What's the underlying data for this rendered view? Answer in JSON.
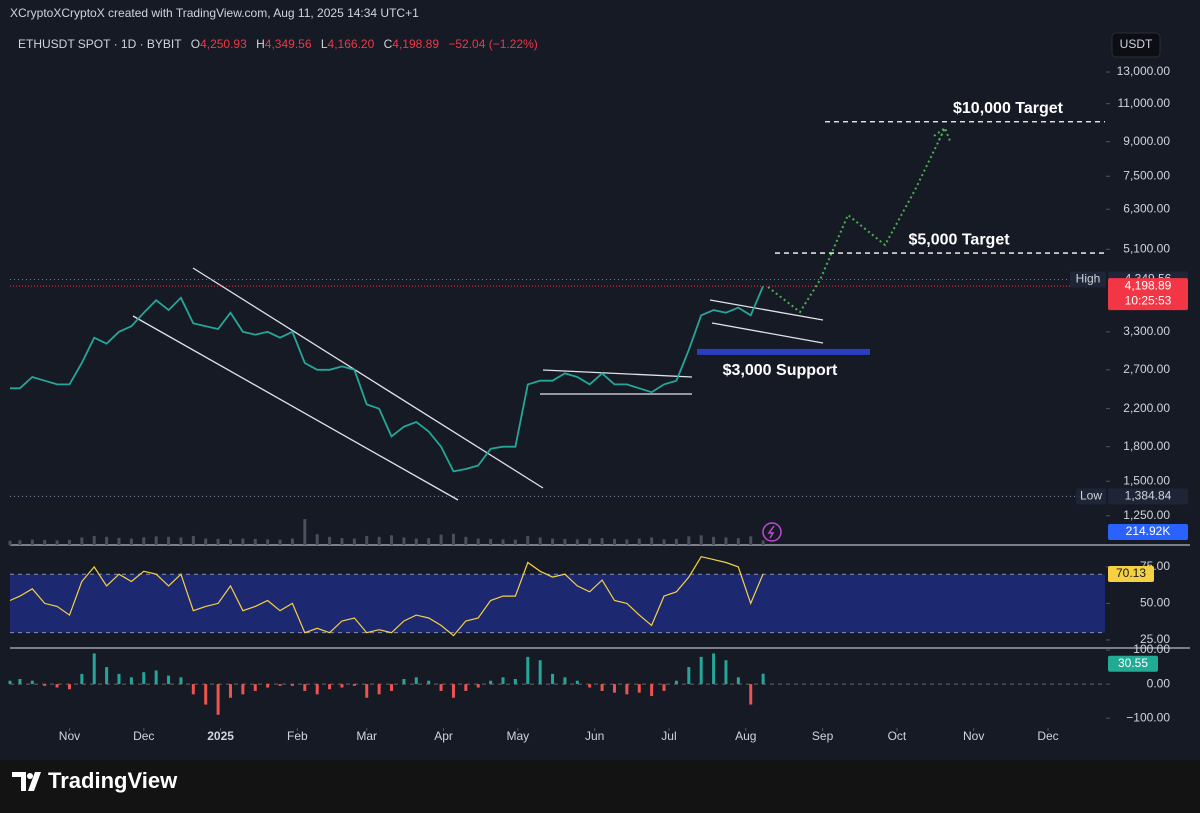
{
  "header": {
    "author_line": "XCryptoXCryptoX created with TradingView.com, Aug 11, 2025 14:34 UTC+1",
    "symbol": "ETHUSDT SPOT · 1D · BYBIT",
    "open_label": "O",
    "open": "4,250.93",
    "high_label": "H",
    "high": "4,349.56",
    "low_label": "L",
    "low": "4,166.20",
    "close_label": "C",
    "close": "4,198.89",
    "change": "−52.04 (−1.22%)",
    "currency": "USDT",
    "brand": "TradingView"
  },
  "chart_data": [
    {
      "type": "line",
      "color": "#26a69a",
      "log": true,
      "x": [
        -24,
        -20,
        -15,
        -10,
        -5,
        0,
        5,
        10,
        15,
        20,
        25,
        30,
        35,
        40,
        45,
        50,
        55,
        60,
        65,
        70,
        75,
        80,
        85,
        90,
        95,
        100,
        105,
        110,
        115,
        120,
        125,
        130,
        135,
        140,
        145,
        150,
        155,
        160,
        165,
        170,
        175,
        180,
        185,
        190,
        195,
        200,
        205,
        210,
        215,
        220,
        225,
        230,
        235,
        240,
        245,
        250,
        255,
        260,
        265,
        270,
        275,
        280
      ],
      "values": [
        2450,
        2450,
        2600,
        2550,
        2500,
        2500,
        2800,
        3200,
        3100,
        3300,
        3400,
        3650,
        3900,
        3700,
        3950,
        3450,
        3400,
        3350,
        3650,
        3300,
        3250,
        3300,
        3200,
        3300,
        2800,
        2700,
        2700,
        2750,
        2700,
        2250,
        2200,
        1900,
        2000,
        2050,
        1950,
        1800,
        1580,
        1600,
        1630,
        1780,
        1800,
        1800,
        2500,
        2550,
        2550,
        2650,
        2600,
        2500,
        2650,
        2500,
        2500,
        2450,
        2400,
        2500,
        2550,
        3000,
        3600,
        3700,
        3650,
        3750,
        3600,
        4198.89
      ],
      "xlim": [
        -24,
        418
      ],
      "xticks": [
        {
          "value": 0,
          "label": "Nov"
        },
        {
          "value": 30,
          "label": "Dec"
        },
        {
          "value": 61,
          "label": "2025"
        },
        {
          "value": 92,
          "label": "Feb"
        },
        {
          "value": 120,
          "label": "Mar"
        },
        {
          "value": 151,
          "label": "Apr"
        },
        {
          "value": 181,
          "label": "May"
        },
        {
          "value": 212,
          "label": "Jun"
        },
        {
          "value": 242,
          "label": "Jul"
        },
        {
          "value": 273,
          "label": "Aug"
        },
        {
          "value": 304,
          "label": "Sep"
        },
        {
          "value": 334,
          "label": "Oct"
        },
        {
          "value": 365,
          "label": "Nov"
        },
        {
          "value": 395,
          "label": "Dec"
        }
      ],
      "ylim": [
        1100,
        16400
      ],
      "yticks": [
        {
          "value": 13000,
          "label": "13,000.00"
        },
        {
          "value": 11000,
          "label": "11,000.00"
        },
        {
          "value": 9000,
          "label": "9,000.00"
        },
        {
          "value": 7500,
          "label": "7,500.00"
        },
        {
          "value": 6300,
          "label": "6,300.00"
        },
        {
          "value": 5100,
          "label": "5,100.00"
        },
        {
          "value": 3300,
          "label": "3,300.00"
        },
        {
          "value": 2700,
          "label": "2,700.00"
        },
        {
          "value": 2200,
          "label": "2,200.00"
        },
        {
          "value": 1800,
          "label": "1,800.00"
        },
        {
          "value": 1500,
          "label": "1,500.00"
        },
        {
          "value": 1250,
          "label": "1,250.00"
        }
      ],
      "annotations": [
        {
          "text": "$10,000 Target",
          "value": 10000
        },
        {
          "text": "$5,000 Target",
          "value": 5000
        },
        {
          "text": "$3,000 Support",
          "value": 3000
        }
      ],
      "high": {
        "label": "High",
        "value": 4349.56,
        "value_label": "4,349.56"
      },
      "low": {
        "label": "Low",
        "value": 1384.84,
        "value_label": "1,384.84"
      },
      "last": {
        "value": 4198.89,
        "value_label": "4,198.89",
        "countdown": "10:25:53"
      }
    },
    {
      "type": "bar",
      "color": "#4a4f5e",
      "x": [
        -24,
        -20,
        -15,
        -10,
        -5,
        0,
        5,
        10,
        15,
        20,
        25,
        30,
        35,
        40,
        45,
        50,
        55,
        60,
        65,
        70,
        75,
        80,
        85,
        90,
        95,
        100,
        105,
        110,
        115,
        120,
        125,
        130,
        135,
        140,
        145,
        150,
        155,
        160,
        165,
        170,
        175,
        180,
        185,
        190,
        195,
        200,
        205,
        210,
        215,
        220,
        225,
        230,
        235,
        240,
        245,
        250,
        255,
        260,
        265,
        270,
        275,
        280
      ],
      "values": [
        200,
        220,
        250,
        230,
        210,
        240,
        350,
        420,
        380,
        330,
        300,
        360,
        400,
        380,
        350,
        420,
        300,
        280,
        260,
        300,
        280,
        260,
        250,
        300,
        1200,
        500,
        380,
        320,
        300,
        420,
        380,
        450,
        350,
        300,
        320,
        480,
        520,
        380,
        300,
        280,
        260,
        250,
        420,
        350,
        300,
        280,
        260,
        300,
        320,
        280,
        260,
        300,
        350,
        260,
        280,
        400,
        450,
        380,
        350,
        320,
        400,
        214.92
      ],
      "ylim": [
        0,
        1300
      ],
      "last_label": "214.92K"
    },
    {
      "type": "line",
      "color": "#f5d142",
      "band": [
        30,
        70
      ],
      "x": [
        -24,
        -20,
        -15,
        -10,
        -5,
        0,
        5,
        10,
        15,
        20,
        25,
        30,
        35,
        40,
        45,
        50,
        55,
        60,
        65,
        70,
        75,
        80,
        85,
        90,
        95,
        100,
        105,
        110,
        115,
        120,
        125,
        130,
        135,
        140,
        145,
        150,
        155,
        160,
        165,
        170,
        175,
        180,
        185,
        190,
        195,
        200,
        205,
        210,
        215,
        220,
        225,
        230,
        235,
        240,
        245,
        250,
        255,
        260,
        265,
        270,
        275,
        280
      ],
      "values": [
        52,
        55,
        60,
        50,
        48,
        42,
        65,
        75,
        62,
        70,
        65,
        72,
        70,
        62,
        70,
        45,
        48,
        50,
        62,
        45,
        48,
        52,
        45,
        50,
        30,
        33,
        30,
        38,
        40,
        30,
        32,
        30,
        38,
        42,
        40,
        35,
        28,
        38,
        40,
        52,
        55,
        55,
        78,
        72,
        68,
        70,
        62,
        58,
        66,
        52,
        50,
        42,
        35,
        55,
        58,
        68,
        82,
        80,
        78,
        75,
        50,
        70.13
      ],
      "ylim": [
        19.5,
        90
      ],
      "yticks": [
        {
          "value": 75,
          "label": "75.00"
        },
        {
          "value": 50,
          "label": "50.00"
        },
        {
          "value": 25,
          "label": "25.00"
        }
      ],
      "last_label": "70.13"
    },
    {
      "type": "bar",
      "color": "#26a69a",
      "negative_color": "#ef5350",
      "x": [
        -24,
        -20,
        -15,
        -10,
        -5,
        0,
        5,
        10,
        15,
        20,
        25,
        30,
        35,
        40,
        45,
        50,
        55,
        60,
        65,
        70,
        75,
        80,
        85,
        90,
        95,
        100,
        105,
        110,
        115,
        120,
        125,
        130,
        135,
        140,
        145,
        150,
        155,
        160,
        165,
        170,
        175,
        180,
        185,
        190,
        195,
        200,
        205,
        210,
        215,
        220,
        225,
        230,
        235,
        240,
        245,
        250,
        255,
        260,
        265,
        270,
        275,
        280
      ],
      "values": [
        10,
        15,
        10,
        -5,
        -10,
        -15,
        30,
        90,
        50,
        30,
        20,
        35,
        40,
        25,
        20,
        -30,
        -60,
        -90,
        -40,
        -30,
        -20,
        -10,
        -5,
        -5,
        -20,
        -30,
        -15,
        -10,
        -5,
        -40,
        -30,
        -20,
        15,
        20,
        10,
        -20,
        -40,
        -20,
        -10,
        10,
        20,
        15,
        80,
        70,
        30,
        20,
        10,
        -10,
        -20,
        -25,
        -30,
        -25,
        -35,
        -20,
        10,
        50,
        80,
        90,
        70,
        20,
        -60,
        30.55
      ],
      "ylim": [
        -120,
        106
      ],
      "yticks": [
        {
          "value": 100,
          "label": "100.00"
        },
        {
          "value": 0,
          "label": "0.00"
        },
        {
          "value": -100,
          "label": "−100.00"
        }
      ],
      "last_label": "30.55"
    }
  ]
}
